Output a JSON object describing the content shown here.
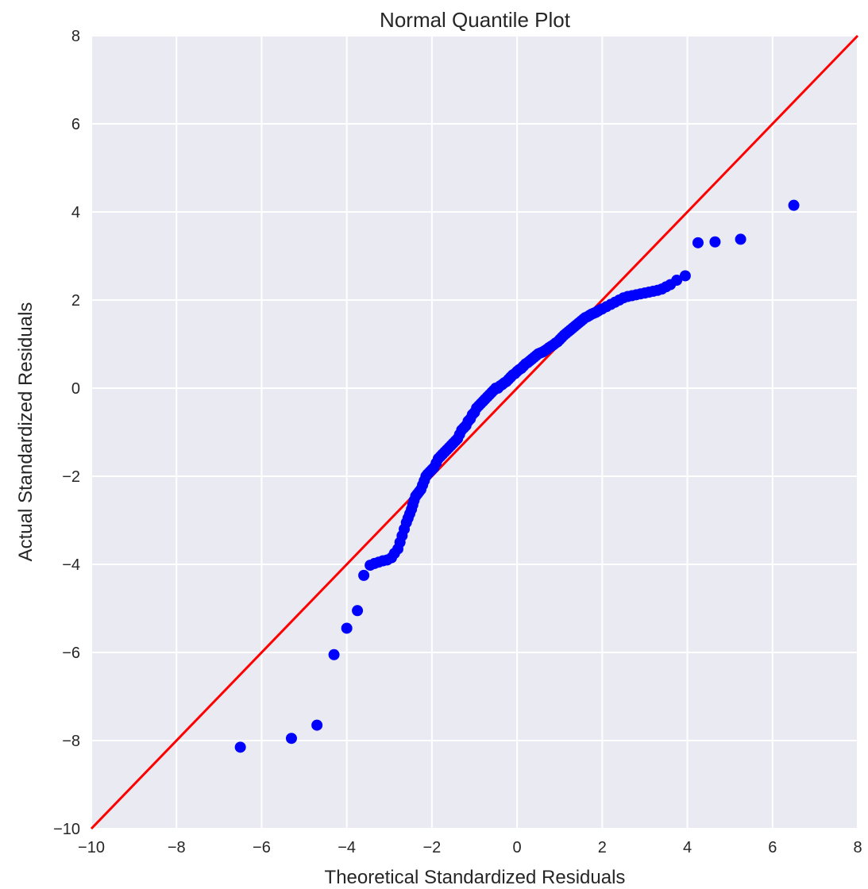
{
  "chart_data": {
    "type": "scatter",
    "title": "Normal Quantile Plot",
    "xlabel": "Theoretical Standardized Residuals",
    "ylabel": "Actual Standardized Residuals",
    "xlim": [
      -10,
      8
    ],
    "ylim": [
      -10,
      8
    ],
    "xticks": [
      "−10",
      "−8",
      "−6",
      "−4",
      "−2",
      "0",
      "2",
      "4",
      "6",
      "8"
    ],
    "yticks": [
      "−10",
      "−8",
      "−6",
      "−4",
      "−2",
      "0",
      "2",
      "4",
      "6",
      "8"
    ],
    "grid": true,
    "colors": {
      "background": "#eaeaf2",
      "grid": "#ffffff",
      "points": "#0000ff",
      "reference_line": "#ff0000"
    },
    "reference_line": {
      "x": [
        -10,
        8
      ],
      "y": [
        -10,
        8
      ]
    },
    "x": [
      -6.5,
      -5.3,
      -4.7,
      -4.3,
      -4.0,
      -3.75,
      -3.6,
      -3.45,
      -3.35,
      -3.25,
      -3.15,
      -3.05,
      -2.95,
      -2.88,
      -2.8,
      -2.75,
      -2.7,
      -2.65,
      -2.6,
      -2.56,
      -2.52,
      -2.48,
      -2.45,
      -2.42,
      -2.38,
      -2.34,
      -2.3,
      -2.26,
      -2.22,
      -2.18,
      -2.14,
      -2.1,
      -2.05,
      -2.0,
      -1.95,
      -1.9,
      -1.85,
      -1.8,
      -1.75,
      -1.7,
      -1.65,
      -1.6,
      -1.55,
      -1.5,
      -1.45,
      -1.4,
      -1.35,
      -1.3,
      -1.25,
      -1.2,
      -1.15,
      -1.1,
      -1.05,
      -1.0,
      -0.95,
      -0.9,
      -0.85,
      -0.8,
      -0.75,
      -0.7,
      -0.65,
      -0.6,
      -0.55,
      -0.5,
      -0.45,
      -0.4,
      -0.35,
      -0.3,
      -0.25,
      -0.2,
      -0.15,
      -0.1,
      -0.05,
      0.0,
      0.05,
      0.1,
      0.15,
      0.2,
      0.25,
      0.3,
      0.35,
      0.4,
      0.45,
      0.5,
      0.55,
      0.6,
      0.65,
      0.7,
      0.75,
      0.8,
      0.85,
      0.9,
      0.95,
      1.0,
      1.05,
      1.1,
      1.15,
      1.2,
      1.25,
      1.3,
      1.35,
      1.4,
      1.45,
      1.5,
      1.55,
      1.6,
      1.65,
      1.7,
      1.75,
      1.8,
      1.85,
      1.9,
      1.95,
      2.0,
      2.1,
      2.2,
      2.3,
      2.4,
      2.5,
      2.6,
      2.7,
      2.8,
      2.9,
      3.0,
      3.1,
      3.2,
      3.3,
      3.4,
      3.5,
      3.6,
      3.75,
      3.95,
      4.25,
      4.65,
      5.25,
      6.5
    ],
    "y": [
      -8.15,
      -7.95,
      -7.65,
      -6.05,
      -5.45,
      -5.05,
      -4.25,
      -4.02,
      -3.98,
      -3.95,
      -3.92,
      -3.9,
      -3.85,
      -3.75,
      -3.65,
      -3.5,
      -3.35,
      -3.2,
      -3.05,
      -2.95,
      -2.85,
      -2.75,
      -2.65,
      -2.55,
      -2.45,
      -2.4,
      -2.35,
      -2.3,
      -2.2,
      -2.1,
      -2.0,
      -1.95,
      -1.9,
      -1.85,
      -1.8,
      -1.7,
      -1.6,
      -1.55,
      -1.5,
      -1.45,
      -1.4,
      -1.35,
      -1.3,
      -1.25,
      -1.2,
      -1.15,
      -1.05,
      -0.95,
      -0.9,
      -0.85,
      -0.75,
      -0.7,
      -0.6,
      -0.55,
      -0.45,
      -0.4,
      -0.35,
      -0.3,
      -0.25,
      -0.2,
      -0.15,
      -0.1,
      -0.05,
      0.0,
      0.0,
      0.05,
      0.08,
      0.12,
      0.15,
      0.2,
      0.25,
      0.3,
      0.33,
      0.38,
      0.42,
      0.45,
      0.5,
      0.55,
      0.58,
      0.62,
      0.66,
      0.7,
      0.74,
      0.78,
      0.8,
      0.82,
      0.85,
      0.88,
      0.92,
      0.95,
      0.98,
      1.02,
      1.05,
      1.1,
      1.15,
      1.2,
      1.24,
      1.28,
      1.32,
      1.36,
      1.4,
      1.44,
      1.48,
      1.52,
      1.56,
      1.6,
      1.62,
      1.65,
      1.68,
      1.7,
      1.72,
      1.75,
      1.78,
      1.8,
      1.85,
      1.9,
      1.95,
      2.0,
      2.05,
      2.08,
      2.1,
      2.12,
      2.14,
      2.16,
      2.18,
      2.2,
      2.22,
      2.25,
      2.3,
      2.35,
      2.45,
      2.55,
      3.3,
      3.32,
      3.38,
      4.15
    ]
  }
}
